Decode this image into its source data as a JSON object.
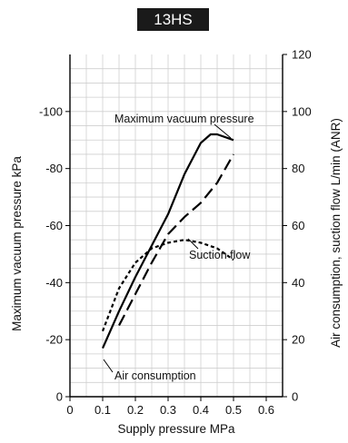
{
  "chart_data": {
    "type": "line",
    "title": "13HS",
    "xlabel": "Supply pressure MPa",
    "ylabel_left": "Maximum vacuum pressure  kPa",
    "ylabel_right": "Air consumption, suction flow L/min (ANR)",
    "xlim": [
      0,
      0.65
    ],
    "ylim_left": [
      0,
      -120
    ],
    "ylim_right": [
      0,
      120
    ],
    "grid": true,
    "x_ticks": [
      "0",
      "0.1",
      "0.2",
      "0.3",
      "0.4",
      "0.5",
      "0.6"
    ],
    "y_ticks_left": [
      "0",
      "-20",
      "-40",
      "-60",
      "-80",
      "-100"
    ],
    "y_ticks_right": [
      "0",
      "20",
      "40",
      "60",
      "80",
      "100",
      "120"
    ],
    "series": [
      {
        "name": "Maximum vacuum pressure",
        "axis": "left",
        "style": "solid",
        "x": [
          0.1,
          0.15,
          0.2,
          0.25,
          0.3,
          0.35,
          0.4,
          0.43,
          0.45,
          0.5
        ],
        "y": [
          -17,
          -30,
          -42,
          -53,
          -64,
          -78,
          -89,
          -92,
          -92,
          -90
        ]
      },
      {
        "name": "Air consumption",
        "axis": "right",
        "style": "dashed",
        "x": [
          0.15,
          0.2,
          0.25,
          0.3,
          0.35,
          0.4,
          0.45,
          0.5
        ],
        "y": [
          25,
          36,
          47,
          57,
          63,
          68,
          75,
          85
        ]
      },
      {
        "name": "Suction flow",
        "axis": "right",
        "style": "dotted",
        "x": [
          0.1,
          0.15,
          0.2,
          0.25,
          0.3,
          0.35,
          0.4,
          0.45,
          0.5
        ],
        "y": [
          23,
          38,
          47,
          52,
          54,
          55,
          54,
          52,
          48
        ]
      }
    ],
    "annotations": [
      "Maximum vacuum pressure",
      "Suction flow",
      "Air consumption"
    ]
  }
}
